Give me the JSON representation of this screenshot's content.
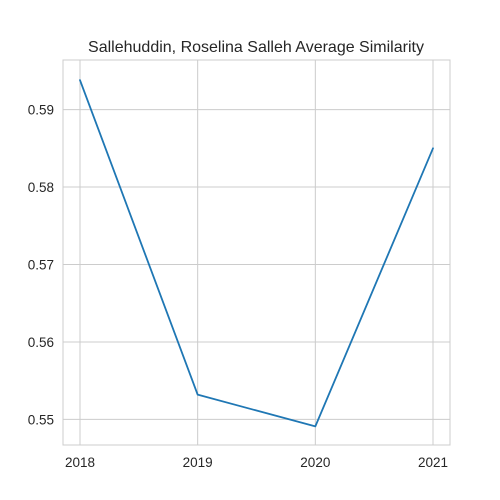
{
  "chart_data": {
    "type": "line",
    "title": "Sallehuddin, Roselina Salleh Average Similarity",
    "xlabel": "",
    "ylabel": "",
    "x": [
      "2018",
      "2019",
      "2020",
      "2021"
    ],
    "series": [
      {
        "values": [
          0.5938,
          0.5532,
          0.5491,
          0.585
        ],
        "color": "#1f77b4"
      }
    ],
    "yticks": [
      0.55,
      0.56,
      0.57,
      0.58,
      0.59
    ],
    "ytick_labels": [
      "0.55",
      "0.56",
      "0.57",
      "0.58",
      "0.59"
    ],
    "ylim": [
      0.5467,
      0.5964
    ],
    "grid": true,
    "legend": "none"
  }
}
